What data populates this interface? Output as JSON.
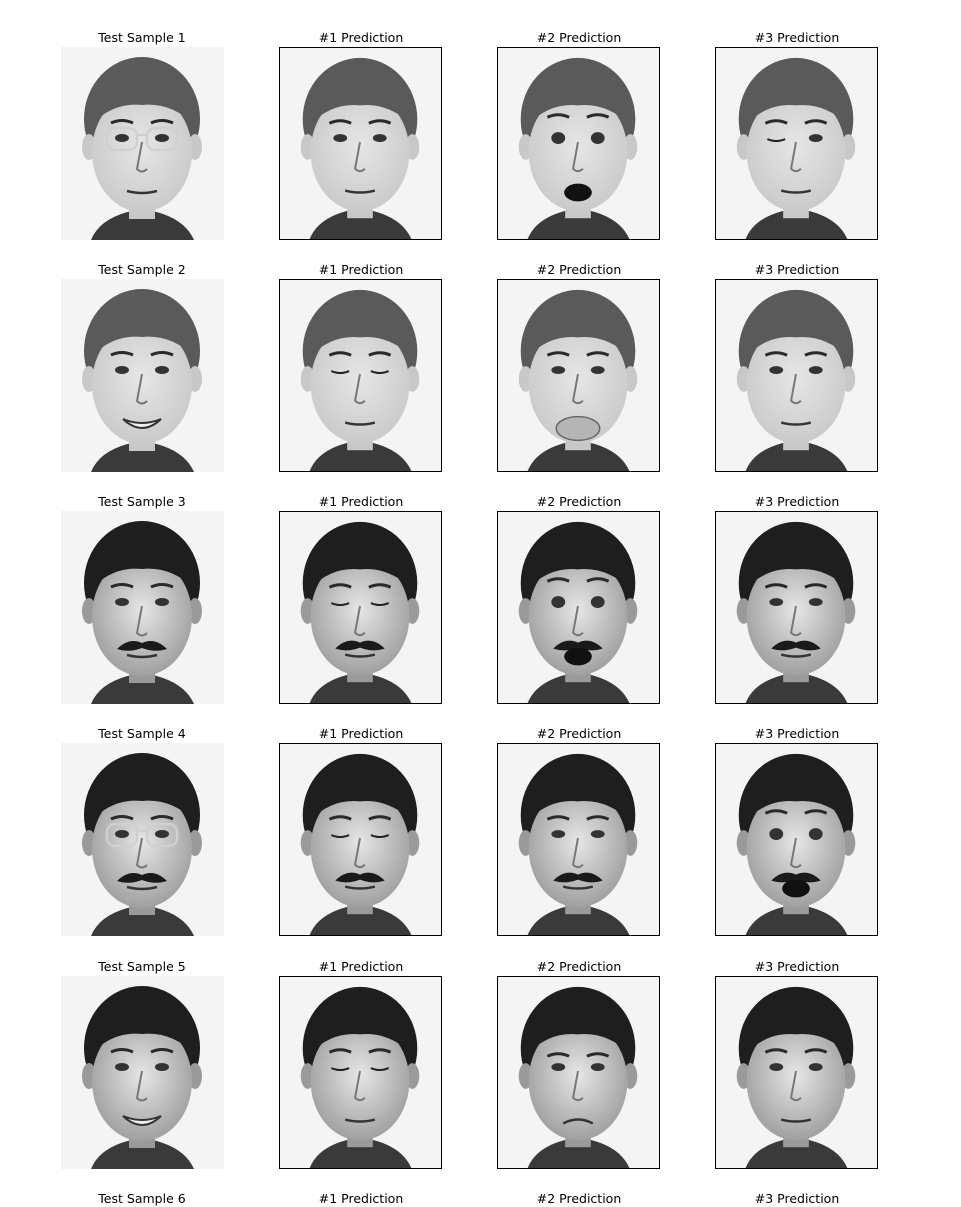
{
  "figure": {
    "column_titles": [
      "Test Sample",
      "#1 Prediction",
      "#2 Prediction",
      "#3 Prediction"
    ],
    "rows": [
      {
        "sample_label": "Test Sample 1",
        "prediction_labels": [
          "#1 Prediction",
          "#2 Prediction",
          "#3 Prediction"
        ],
        "subject": "light-haired man",
        "faces": [
          {
            "expression": "neutral",
            "glasses": true
          },
          {
            "expression": "neutral",
            "glasses": false
          },
          {
            "expression": "surprised",
            "glasses": false
          },
          {
            "expression": "wink",
            "glasses": false
          }
        ]
      },
      {
        "sample_label": "Test Sample 2",
        "prediction_labels": [
          "#1 Prediction",
          "#2 Prediction",
          "#3 Prediction"
        ],
        "subject": "light-haired man",
        "faces": [
          {
            "expression": "happy",
            "glasses": false
          },
          {
            "expression": "sleepy",
            "glasses": false
          },
          {
            "expression": "puffed-cheeks",
            "glasses": false
          },
          {
            "expression": "neutral",
            "glasses": false
          }
        ]
      },
      {
        "sample_label": "Test Sample 3",
        "prediction_labels": [
          "#1 Prediction",
          "#2 Prediction",
          "#3 Prediction"
        ],
        "subject": "dark-haired man with mustache",
        "faces": [
          {
            "expression": "neutral",
            "glasses": false
          },
          {
            "expression": "squint",
            "glasses": false
          },
          {
            "expression": "surprised",
            "glasses": false
          },
          {
            "expression": "neutral",
            "glasses": false
          }
        ]
      },
      {
        "sample_label": "Test Sample 4",
        "prediction_labels": [
          "#1 Prediction",
          "#2 Prediction",
          "#3 Prediction"
        ],
        "subject": "dark-haired man with mustache",
        "faces": [
          {
            "expression": "neutral",
            "glasses": true
          },
          {
            "expression": "squint",
            "glasses": false
          },
          {
            "expression": "neutral",
            "glasses": false
          },
          {
            "expression": "surprised",
            "glasses": false
          }
        ]
      },
      {
        "sample_label": "Test Sample 5",
        "prediction_labels": [
          "#1 Prediction",
          "#2 Prediction",
          "#3 Prediction"
        ],
        "subject": "dark-haired man",
        "faces": [
          {
            "expression": "happy",
            "glasses": false
          },
          {
            "expression": "sleepy",
            "glasses": false
          },
          {
            "expression": "frown",
            "glasses": false
          },
          {
            "expression": "neutral",
            "glasses": false
          }
        ]
      },
      {
        "sample_label": "Test Sample 6",
        "prediction_labels": [
          "#1 Prediction",
          "#2 Prediction",
          "#3 Prediction"
        ],
        "faces": []
      }
    ]
  },
  "colors": {
    "background": "#ffffff",
    "frame": "#000000",
    "wall": "#f4f4f4",
    "skin_light": "#c8c8c8",
    "skin_dark": "#9a9a9a",
    "hair_light": "#5a5a5a",
    "hair_dark": "#1e1e1e",
    "shirt": "#3a3a3a"
  }
}
